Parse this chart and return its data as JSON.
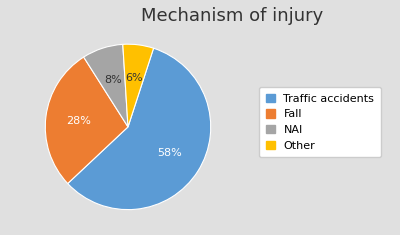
{
  "title": "Mechanism of injury",
  "labels": [
    "Traffic accidents",
    "Fall",
    "NAI",
    "Other"
  ],
  "values": [
    58,
    28,
    8,
    6
  ],
  "colors": [
    "#5B9BD5",
    "#ED7D31",
    "#A5A5A5",
    "#FFC000"
  ],
  "pct_labels": [
    "58%",
    "28%",
    "8%",
    "6%"
  ],
  "background_color": "#E0E0E0",
  "title_fontsize": 13,
  "legend_fontsize": 8,
  "pct_fontsize": 8,
  "startangle": 72
}
